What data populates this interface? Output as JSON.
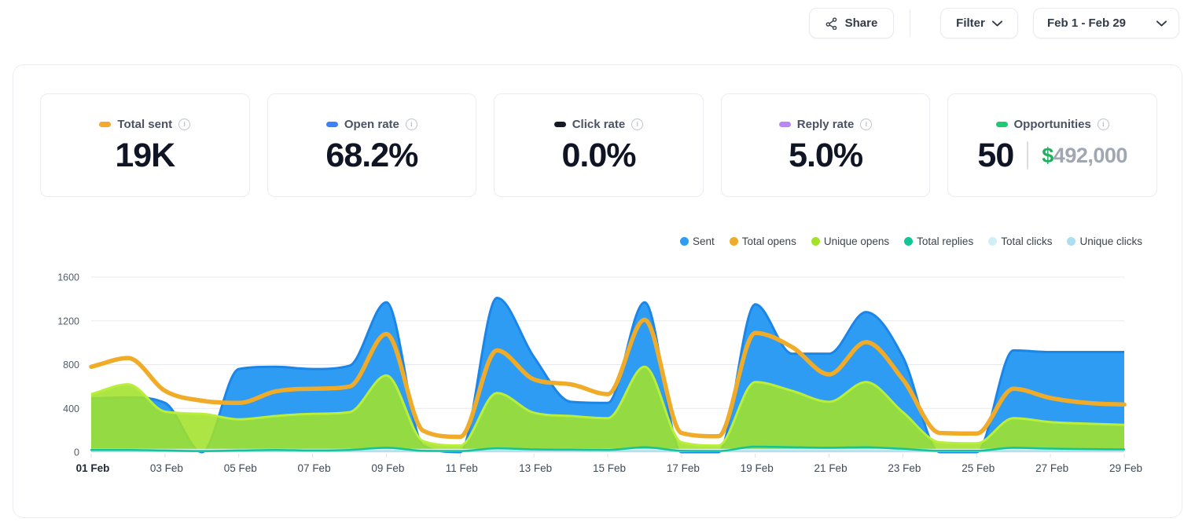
{
  "header": {
    "share_label": "Share",
    "filter_label": "Filter",
    "date_range": "Feb 1 - Feb 29"
  },
  "stats": [
    {
      "label": "Total sent",
      "value": "19K",
      "pill_color": "#f5a730"
    },
    {
      "label": "Open rate",
      "value": "68.2%",
      "pill_color": "#3b82f6"
    },
    {
      "label": "Click rate",
      "value": "0.0%",
      "pill_color": "#151a26"
    },
    {
      "label": "Reply rate",
      "value": "5.0%",
      "pill_color": "#bb86f5"
    },
    {
      "label": "Opportunities",
      "value": "50",
      "pill_color": "#1ec970",
      "currency_symbol": "$",
      "currency_value": "492,000",
      "currency_symbol_color": "#1db05f",
      "currency_value_color": "#a0a7b1"
    }
  ],
  "chart_data": {
    "type": "area",
    "categories": [
      "01 Feb",
      "02 Feb",
      "03 Feb",
      "04 Feb",
      "05 Feb",
      "06 Feb",
      "07 Feb",
      "08 Feb",
      "09 Feb",
      "10 Feb",
      "11 Feb",
      "12 Feb",
      "13 Feb",
      "14 Feb",
      "15 Feb",
      "16 Feb",
      "17 Feb",
      "18 Feb",
      "19 Feb",
      "20 Feb",
      "21 Feb",
      "22 Feb",
      "23 Feb",
      "24 Feb",
      "25 Feb",
      "26 Feb",
      "27 Feb",
      "28 Feb",
      "29 Feb"
    ],
    "x_tick_step": 2,
    "y_ticks": [
      0,
      400,
      800,
      1200,
      1600
    ],
    "ylim": [
      0,
      1600
    ],
    "grid": true,
    "legend_position": "top-right",
    "series": [
      {
        "name": "Sent",
        "type": "area",
        "color": "#2f9cf3",
        "stroke": "#1a86e8",
        "opacity": 1,
        "values": [
          490,
          500,
          450,
          0,
          760,
          780,
          760,
          790,
          1370,
          60,
          0,
          1410,
          870,
          460,
          450,
          1370,
          0,
          0,
          1350,
          900,
          900,
          1280,
          870,
          0,
          0,
          930,
          915,
          915,
          915
        ]
      },
      {
        "name": "Total opens",
        "type": "line",
        "color": "#f0ab28",
        "stroke": "#f0ab28",
        "opacity": 1,
        "values": [
          780,
          860,
          560,
          470,
          450,
          555,
          580,
          600,
          1080,
          195,
          140,
          930,
          665,
          620,
          530,
          1210,
          175,
          145,
          1090,
          960,
          710,
          1005,
          665,
          175,
          170,
          580,
          495,
          450,
          435
        ]
      },
      {
        "name": "Unique opens",
        "type": "area",
        "color": "#a2e32a",
        "stroke": "#b9ee3a",
        "opacity": 0.88,
        "values": [
          530,
          620,
          370,
          350,
          300,
          330,
          350,
          365,
          700,
          100,
          60,
          540,
          360,
          330,
          310,
          780,
          90,
          60,
          640,
          560,
          460,
          640,
          365,
          90,
          80,
          310,
          275,
          260,
          250
        ]
      },
      {
        "name": "Total replies",
        "type": "line",
        "color": "#12c496",
        "stroke": "#12c496",
        "opacity": 1,
        "values": [
          20,
          20,
          15,
          10,
          15,
          20,
          15,
          20,
          40,
          12,
          10,
          35,
          25,
          22,
          20,
          45,
          12,
          10,
          50,
          45,
          40,
          45,
          30,
          12,
          12,
          40,
          32,
          28,
          25
        ]
      },
      {
        "name": "Total clicks",
        "type": "area",
        "color": "#d2eff8",
        "stroke": "none",
        "opacity": 0.95,
        "values": [
          30,
          30,
          30,
          30,
          30,
          30,
          30,
          30,
          30,
          30,
          30,
          30,
          30,
          30,
          30,
          30,
          30,
          30,
          30,
          30,
          30,
          30,
          30,
          30,
          30,
          30,
          30,
          30,
          30
        ]
      },
      {
        "name": "Unique clicks",
        "type": "area",
        "color": "#abdff0",
        "stroke": "none",
        "opacity": 0.9,
        "values": [
          18,
          18,
          18,
          18,
          18,
          18,
          18,
          18,
          18,
          18,
          18,
          18,
          18,
          18,
          18,
          18,
          18,
          18,
          18,
          18,
          18,
          18,
          18,
          18,
          18,
          18,
          18,
          18,
          18
        ]
      }
    ]
  }
}
